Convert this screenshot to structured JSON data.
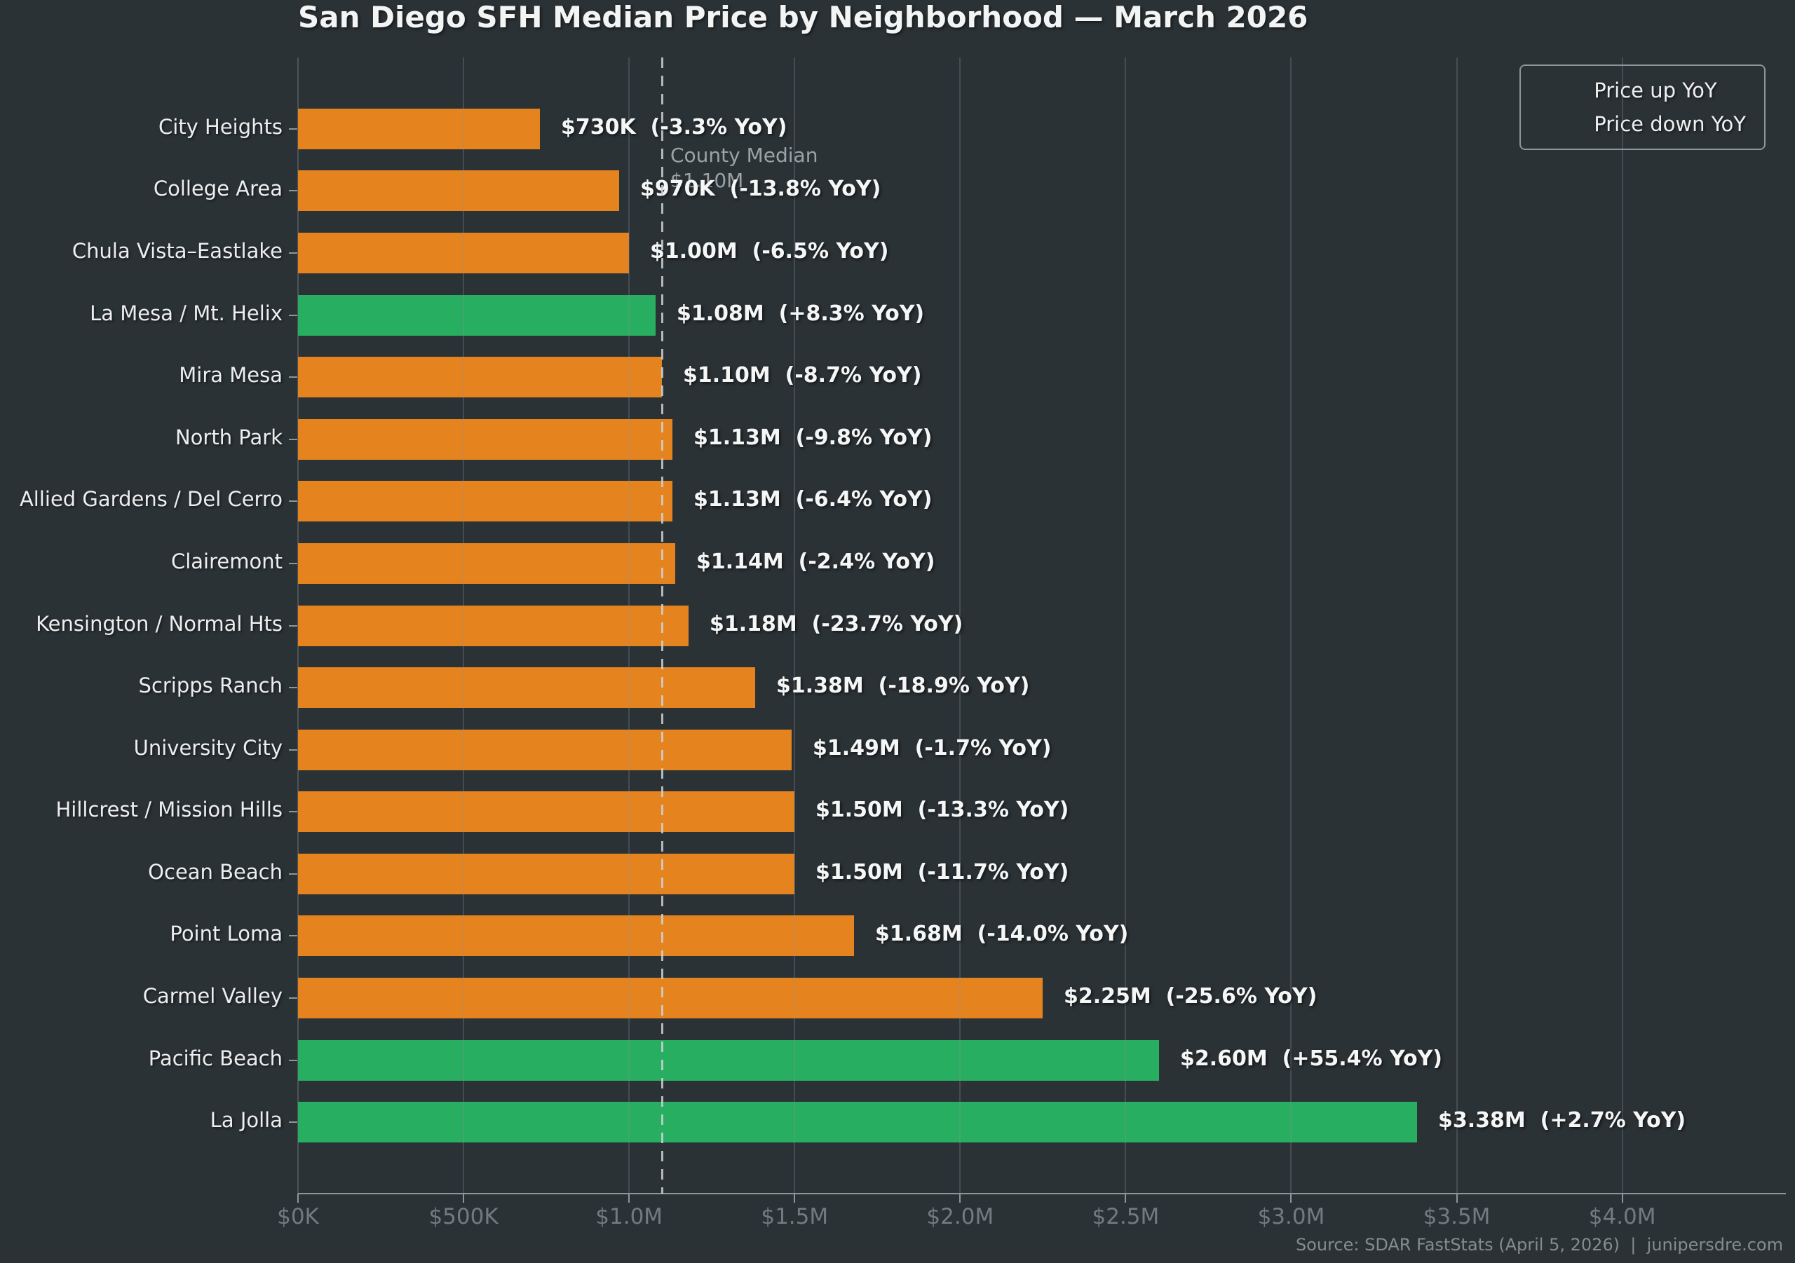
{
  "title": "San Diego SFH Median Price by Neighborhood — March 2026",
  "legend": {
    "up_label": "Price up YoY",
    "down_label": "Price down YoY"
  },
  "colors": {
    "up": "#27ae60",
    "down": "#e5831f",
    "background": "#2b3236",
    "text": "#f3f5f5",
    "muted_text": "#737b80",
    "annotation_text": "#9ba3a7"
  },
  "reference": {
    "line1": "County Median",
    "line2": "$1.10M"
  },
  "footer": "Source: SDAR FastStats (April 5, 2026)  |  junipersdre.com",
  "chart_data": {
    "type": "bar",
    "orientation": "horizontal",
    "title": "San Diego SFH Median Price by Neighborhood — March 2026",
    "categories": [
      "City Heights",
      "College Area",
      "Chula Vista–Eastlake",
      "La Mesa / Mt. Helix",
      "Mira Mesa",
      "North Park",
      "Allied Gardens / Del Cerro",
      "Clairemont",
      "Kensington / Normal Hts",
      "Scripps Ranch",
      "University City",
      "Hillcrest / Mission Hills",
      "Ocean Beach",
      "Point Loma",
      "Carmel Valley",
      "Pacific Beach",
      "La Jolla"
    ],
    "values_usd": [
      730000,
      970000,
      1000000,
      1080000,
      1100000,
      1130000,
      1130000,
      1140000,
      1180000,
      1380000,
      1490000,
      1500000,
      1500000,
      1680000,
      2250000,
      2600000,
      3380000
    ],
    "yoy_pct": [
      -3.3,
      -13.8,
      -6.5,
      8.3,
      -8.7,
      -9.8,
      -6.4,
      -2.4,
      -23.7,
      -18.9,
      -1.7,
      -13.3,
      -11.7,
      -14.0,
      -25.6,
      55.4,
      2.7
    ],
    "directions": [
      "down",
      "down",
      "down",
      "up",
      "down",
      "down",
      "down",
      "down",
      "down",
      "down",
      "down",
      "down",
      "down",
      "down",
      "down",
      "up",
      "up"
    ],
    "labels": [
      "$730K  (-3.3% YoY)",
      "$970K  (-13.8% YoY)",
      "$1.00M  (-6.5% YoY)",
      "$1.08M  (+8.3% YoY)",
      "$1.10M  (-8.7% YoY)",
      "$1.13M  (-9.8% YoY)",
      "$1.13M  (-6.4% YoY)",
      "$1.14M  (-2.4% YoY)",
      "$1.18M  (-23.7% YoY)",
      "$1.38M  (-18.9% YoY)",
      "$1.49M  (-1.7% YoY)",
      "$1.50M  (-13.3% YoY)",
      "$1.50M  (-11.7% YoY)",
      "$1.68M  (-14.0% YoY)",
      "$2.25M  (-25.6% YoY)",
      "$2.60M  (+55.4% YoY)",
      "$3.38M  (+2.7% YoY)"
    ],
    "reference_line": {
      "label": "County Median",
      "value": 1100000,
      "value_label": "$1.10M"
    },
    "xlim": [
      0,
      4490000
    ],
    "x_ticks": {
      "values": [
        0,
        500000,
        1000000,
        1500000,
        2000000,
        2500000,
        3000000,
        3500000,
        4000000
      ],
      "labels": [
        "$0K",
        "$500K",
        "$1.0M",
        "$1.5M",
        "$2.0M",
        "$2.5M",
        "$3.0M",
        "$3.5M",
        "$4.0M"
      ]
    },
    "grid": true,
    "legend_position": "upper right",
    "series": [
      {
        "name": "Price up YoY",
        "color": "#27ae60"
      },
      {
        "name": "Price down YoY",
        "color": "#e5831f"
      }
    ]
  }
}
